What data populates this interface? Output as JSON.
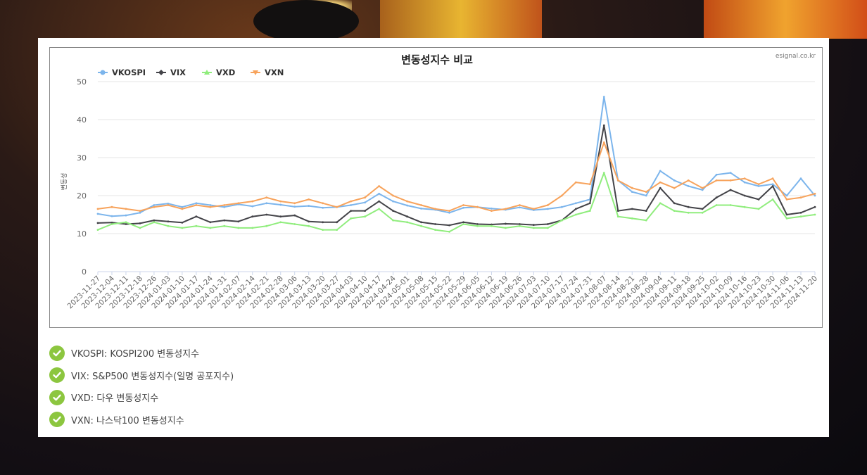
{
  "chart_data": {
    "type": "line",
    "title": "변동성지수 비교",
    "source": "esignal.co.kr",
    "xlabel": "",
    "ylabel": "변동성",
    "ylim": [
      0,
      50
    ],
    "yticks": [
      0,
      10,
      20,
      30,
      40,
      50
    ],
    "grid": true,
    "legend_position": "top-left",
    "x": [
      "2023-11-27",
      "2023-12-04",
      "2023-12-11",
      "2023-12-18",
      "2023-12-26",
      "2024-01-03",
      "2024-01-10",
      "2024-01-17",
      "2024-01-24",
      "2024-01-31",
      "2024-02-07",
      "2024-02-14",
      "2024-02-21",
      "2024-02-28",
      "2024-03-06",
      "2024-03-13",
      "2024-03-20",
      "2024-03-27",
      "2024-04-03",
      "2024-04-10",
      "2024-04-17",
      "2024-04-24",
      "2024-05-01",
      "2024-05-08",
      "2024-05-15",
      "2024-05-22",
      "2024-05-29",
      "2024-06-05",
      "2024-06-12",
      "2024-06-19",
      "2024-06-26",
      "2024-07-03",
      "2024-07-10",
      "2024-07-17",
      "2024-07-24",
      "2024-07-31",
      "2024-08-07",
      "2024-08-14",
      "2024-08-21",
      "2024-08-28",
      "2024-09-04",
      "2024-09-11",
      "2024-09-18",
      "2024-09-25",
      "2024-10-02",
      "2024-10-09",
      "2024-10-16",
      "2024-10-23",
      "2024-10-30",
      "2024-11-06",
      "2024-11-13",
      "2024-11-20"
    ],
    "series": [
      {
        "name": "VKOSPI",
        "color": "#7cb5ec",
        "marker": "circle",
        "values": [
          15.2,
          14.6,
          14.8,
          15.5,
          17.5,
          17.9,
          17.0,
          18.0,
          17.5,
          17.0,
          17.7,
          17.2,
          18.0,
          17.6,
          17.1,
          17.3,
          16.8,
          17.0,
          17.5,
          18.2,
          20.5,
          18.5,
          17.4,
          16.6,
          16.3,
          15.5,
          16.8,
          17.0,
          16.6,
          16.3,
          16.9,
          16.2,
          16.5,
          17.0,
          18.0,
          19.0,
          46.0,
          24.0,
          21.0,
          20.0,
          26.5,
          24.0,
          22.5,
          21.5,
          25.5,
          26.0,
          23.5,
          22.5,
          23.0,
          20.0,
          24.5,
          20.0
        ]
      },
      {
        "name": "VIX",
        "color": "#434348",
        "marker": "diamond",
        "values": [
          12.8,
          12.9,
          12.5,
          12.7,
          13.5,
          13.2,
          12.9,
          14.5,
          13.0,
          13.5,
          13.2,
          14.5,
          15.0,
          14.5,
          14.8,
          13.2,
          13.0,
          13.0,
          16.0,
          16.0,
          18.5,
          16.0,
          14.5,
          13.0,
          12.5,
          12.2,
          13.0,
          12.5,
          12.4,
          12.6,
          12.5,
          12.3,
          12.5,
          13.5,
          16.5,
          18.0,
          38.5,
          16.0,
          16.5,
          16.0,
          22.0,
          18.0,
          17.0,
          16.5,
          19.5,
          21.5,
          20.0,
          19.0,
          22.5,
          15.0,
          15.5,
          17.0
        ]
      },
      {
        "name": "VXD",
        "color": "#90ed7d",
        "marker": "triangle",
        "values": [
          11.0,
          12.5,
          13.0,
          11.5,
          13.0,
          12.0,
          11.5,
          12.0,
          11.5,
          12.0,
          11.5,
          11.5,
          12.0,
          13.0,
          12.5,
          12.0,
          11.0,
          11.0,
          14.0,
          14.5,
          16.5,
          13.5,
          13.0,
          12.0,
          11.0,
          10.5,
          12.5,
          12.0,
          12.0,
          11.5,
          12.0,
          11.5,
          11.5,
          13.5,
          15.0,
          16.0,
          26.0,
          14.5,
          14.0,
          13.5,
          18.0,
          16.0,
          15.5,
          15.5,
          17.5,
          17.5,
          17.0,
          16.5,
          19.0,
          14.0,
          14.5,
          15.0
        ]
      },
      {
        "name": "VXN",
        "color": "#f7a35c",
        "marker": "triangle-down",
        "values": [
          16.5,
          17.0,
          16.5,
          16.0,
          17.0,
          17.5,
          16.5,
          17.5,
          17.0,
          17.5,
          18.0,
          18.5,
          19.5,
          18.5,
          18.0,
          19.0,
          18.0,
          17.0,
          18.5,
          19.5,
          22.5,
          20.0,
          18.5,
          17.5,
          16.5,
          16.0,
          17.5,
          17.0,
          16.0,
          16.5,
          17.5,
          16.5,
          17.5,
          20.0,
          23.5,
          23.0,
          34.0,
          24.0,
          22.0,
          21.0,
          23.5,
          22.0,
          24.0,
          22.0,
          24.0,
          24.0,
          24.5,
          23.0,
          24.5,
          19.0,
          19.5,
          20.5
        ]
      }
    ]
  },
  "legend_notes": [
    {
      "text": "VKOSPI: KOSPI200 변동성지수"
    },
    {
      "text": "VIX: S&P500 변동성지수(일명 공포지수)"
    },
    {
      "text": "VXD: 다우 변동성지수"
    },
    {
      "text": "VXN: 나스닥100 변동성지수"
    }
  ],
  "colors": {
    "check": "#8cc63f",
    "grid": "#e6e6e6",
    "axis_text": "#666666"
  }
}
